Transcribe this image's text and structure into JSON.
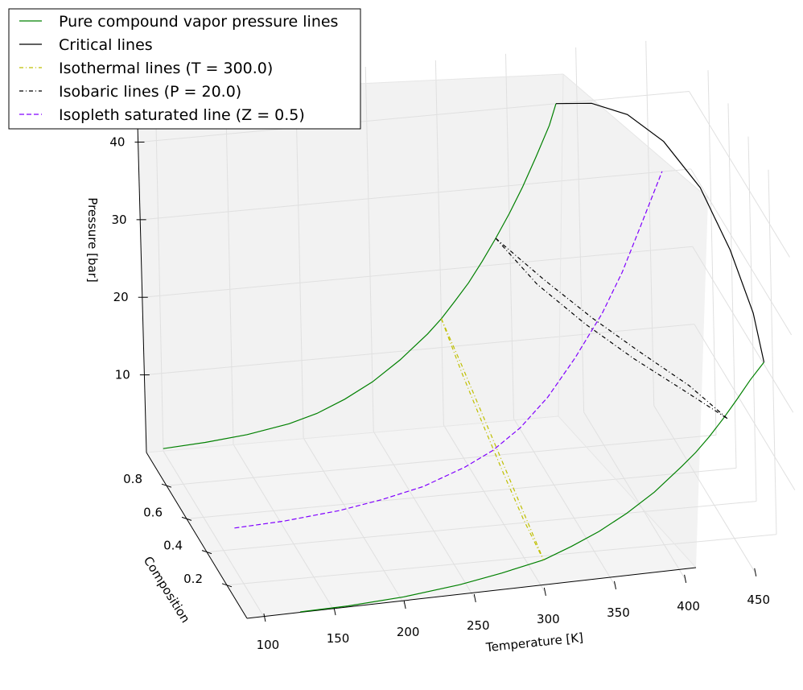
{
  "chart_data": {
    "type": "line",
    "projection": "3d",
    "axes": {
      "x": {
        "label": "Temperature [K]",
        "ticks": [
          100,
          150,
          200,
          250,
          300,
          350,
          400,
          450
        ],
        "range": [
          88,
          480
        ]
      },
      "y": {
        "label": "Composition",
        "ticks": [
          0.2,
          0.4,
          0.6,
          0.8
        ],
        "range": [
          0,
          1
        ]
      },
      "z": {
        "label": "Pressure [bar]",
        "ticks": [
          10,
          20,
          30,
          40
        ],
        "range": [
          0,
          47
        ]
      }
    },
    "grid": true,
    "legend_position": "top-left",
    "legend": [
      {
        "label": "Pure compound vapor pressure lines",
        "color": "#008000",
        "style": "solid"
      },
      {
        "label": "Critical lines",
        "color": "#000000",
        "style": "solid"
      },
      {
        "label": "Isothermal lines (T = 300.0)",
        "color": "#bfbf00",
        "style": "dashdot"
      },
      {
        "label": "Isobaric lines (P = 20.0)",
        "color": "#000000",
        "style": "dashdot"
      },
      {
        "label": "Isopleth saturated line  (Z = 0.5)",
        "color": "#8000ff",
        "style": "dashed"
      }
    ],
    "series": [
      {
        "points": [
          [
            100,
            1,
            0.3
          ],
          [
            130,
            1,
            0.6
          ],
          [
            160,
            1,
            1.1
          ],
          [
            190,
            1,
            2.0
          ],
          [
            210,
            1,
            3.0
          ],
          [
            230,
            1,
            4.5
          ],
          [
            250,
            1,
            6.4
          ],
          [
            270,
            1,
            8.9
          ],
          [
            290,
            1,
            11.9
          ],
          [
            300,
            1,
            13.7
          ],
          [
            310,
            1,
            15.8
          ],
          [
            320,
            1,
            18.0
          ],
          [
            330,
            1,
            20.6
          ],
          [
            340,
            1,
            23.4
          ],
          [
            350,
            1,
            26.4
          ],
          [
            360,
            1,
            29.7
          ],
          [
            370,
            1,
            33.4
          ],
          [
            380,
            1,
            37.3
          ],
          [
            385,
            1,
            40.0
          ]
        ]
      },
      {
        "points": [
          [
            126,
            0,
            0.2
          ],
          [
            160,
            0,
            0.4
          ],
          [
            200,
            0,
            0.9
          ],
          [
            240,
            0,
            1.8
          ],
          [
            270,
            0,
            2.8
          ],
          [
            300,
            0,
            4.0
          ],
          [
            320,
            0,
            5.4
          ],
          [
            340,
            0,
            7.0
          ],
          [
            360,
            0,
            9.0
          ],
          [
            380,
            0,
            11.4
          ],
          [
            400,
            0,
            14.4
          ],
          [
            410,
            0,
            16.0
          ],
          [
            420,
            0,
            17.9
          ],
          [
            430,
            0,
            20.0
          ],
          [
            440,
            0,
            22.3
          ],
          [
            450,
            0,
            24.7
          ],
          [
            460,
            0,
            26.8
          ]
        ]
      },
      {
        "points": [
          [
            385,
            1,
            40.0
          ],
          [
            400,
            0.85,
            43.0
          ],
          [
            415,
            0.7,
            44.5
          ],
          [
            430,
            0.55,
            44.0
          ],
          [
            445,
            0.4,
            41.0
          ],
          [
            455,
            0.25,
            36.0
          ],
          [
            460,
            0.1,
            31.0
          ],
          [
            460,
            0,
            26.8
          ]
        ]
      },
      {
        "points": [
          [
            300,
            1,
            13.7
          ],
          [
            300,
            0.8,
            12.0
          ],
          [
            300,
            0.6,
            10.0
          ],
          [
            300,
            0.4,
            8.0
          ],
          [
            300,
            0.2,
            6.0
          ],
          [
            300,
            0.05,
            4.5
          ],
          [
            300,
            0,
            4.0
          ]
        ]
      },
      {
        "points": [
          [
            300,
            1,
            13.7
          ],
          [
            300,
            0.8,
            11.0
          ],
          [
            300,
            0.6,
            8.8
          ],
          [
            300,
            0.4,
            6.8
          ],
          [
            300,
            0.2,
            5.0
          ],
          [
            300,
            0.05,
            4.2
          ],
          [
            300,
            0,
            4.0
          ]
        ]
      },
      {
        "points": [
          [
            340,
            1,
            23.4
          ],
          [
            360,
            0.8,
            22.0
          ],
          [
            380,
            0.6,
            21.0
          ],
          [
            400,
            0.4,
            20.5
          ],
          [
            420,
            0.2,
            20.2
          ],
          [
            433,
            0,
            20.0
          ]
        ]
      },
      {
        "points": [
          [
            340,
            1,
            23.4
          ],
          [
            355,
            0.8,
            21.5
          ],
          [
            375,
            0.6,
            20.3
          ],
          [
            395,
            0.4,
            19.8
          ],
          [
            415,
            0.2,
            19.8
          ],
          [
            433,
            0,
            20.0
          ]
        ]
      },
      {
        "points": [
          [
            115,
            0.5,
            0.5
          ],
          [
            150,
            0.5,
            0.8
          ],
          [
            190,
            0.5,
            1.5
          ],
          [
            220,
            0.5,
            2.4
          ],
          [
            250,
            0.5,
            3.6
          ],
          [
            280,
            0.5,
            5.6
          ],
          [
            300,
            0.5,
            7.4
          ],
          [
            320,
            0.5,
            10.0
          ],
          [
            340,
            0.5,
            13.6
          ],
          [
            360,
            0.5,
            18.3
          ],
          [
            380,
            0.5,
            23.7
          ],
          [
            395,
            0.5,
            28.8
          ],
          [
            410,
            0.5,
            35.0
          ],
          [
            425,
            0.5,
            41.3
          ]
        ]
      }
    ]
  }
}
